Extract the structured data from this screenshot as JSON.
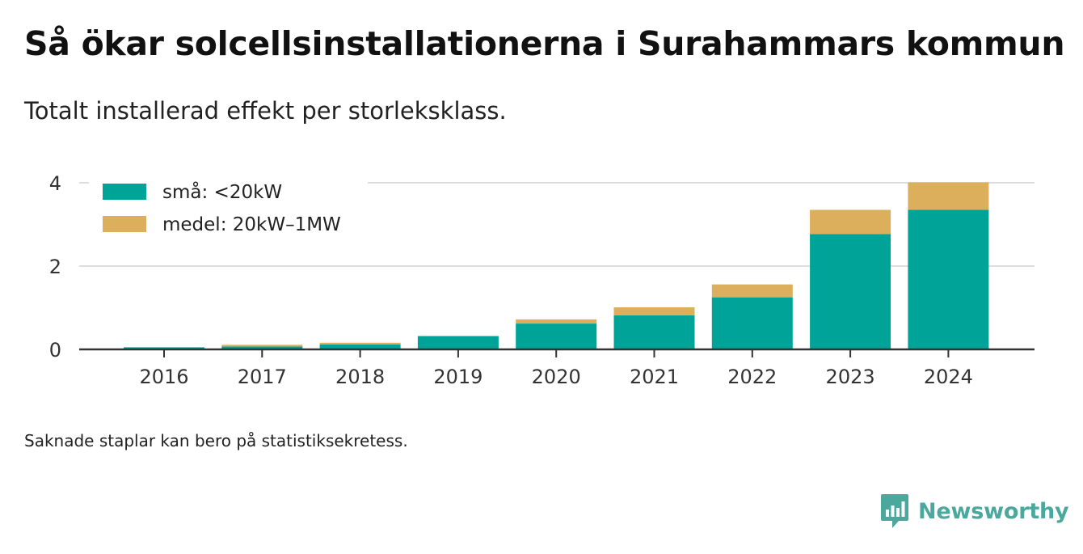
{
  "title": "Så ökar solcellsinstallationerna i Surahammars kommun",
  "subtitle": "Totalt installerad effekt per storleksklass.",
  "footnote": "Saknade staplar kan bero på statistiksekretess.",
  "brand": {
    "name": "Newsworthy",
    "icon": "newsworthy-logo-icon",
    "color": "#4aa89c"
  },
  "chart_data": {
    "type": "bar",
    "stacked": true,
    "categories": [
      "2016",
      "2017",
      "2018",
      "2019",
      "2020",
      "2021",
      "2022",
      "2023",
      "2024"
    ],
    "series": [
      {
        "name": "små: <20kW",
        "color": "#00a398",
        "values": [
          0.05,
          0.07,
          0.12,
          0.32,
          0.62,
          0.82,
          1.25,
          2.77,
          3.35
        ]
      },
      {
        "name": "medel: 20kW–1MW",
        "color": "#dbaf5b",
        "values": [
          0.0,
          0.04,
          0.04,
          0.0,
          0.1,
          0.19,
          0.31,
          0.58,
          0.66
        ]
      }
    ],
    "yticks": [
      0,
      2,
      4
    ],
    "ylim": [
      0,
      4
    ],
    "grid": true,
    "legend": "top-left"
  }
}
